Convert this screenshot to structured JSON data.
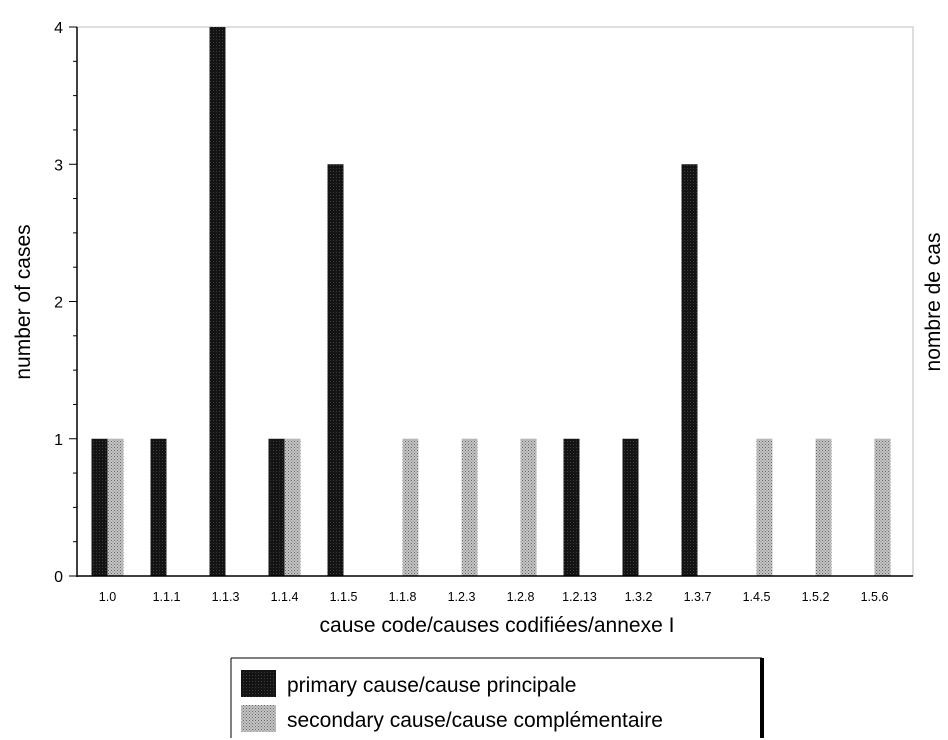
{
  "chart_data": {
    "type": "bar",
    "title": "",
    "xlabel": "cause code/causes codifiées/annexe I",
    "ylabel": "number of cases",
    "ylabel_right": "nombre de cas",
    "ylim": [
      0,
      4
    ],
    "yticks": [
      "0",
      "1",
      "2",
      "3",
      "4"
    ],
    "grid": false,
    "legend_position": "bottom",
    "categories": [
      "1.0",
      "1.1.1",
      "1.1.3",
      "1.1.4",
      "1.1.5",
      "1.1.8",
      "1.2.3",
      "1.2.8",
      "1.2.13",
      "1.3.2",
      "1.3.7",
      "1.4.5",
      "1.5.2",
      "1.5.6"
    ],
    "series": [
      {
        "name": "primary cause/cause principale",
        "color": "#111111",
        "values": [
          1,
          1,
          4,
          1,
          3,
          0,
          0,
          0,
          1,
          1,
          3,
          0,
          0,
          0
        ]
      },
      {
        "name": "secondary cause/cause complémentaire",
        "color": "#a6a6a6",
        "values": [
          1,
          0,
          0,
          1,
          0,
          1,
          1,
          1,
          0,
          0,
          0,
          1,
          1,
          1
        ]
      }
    ]
  }
}
